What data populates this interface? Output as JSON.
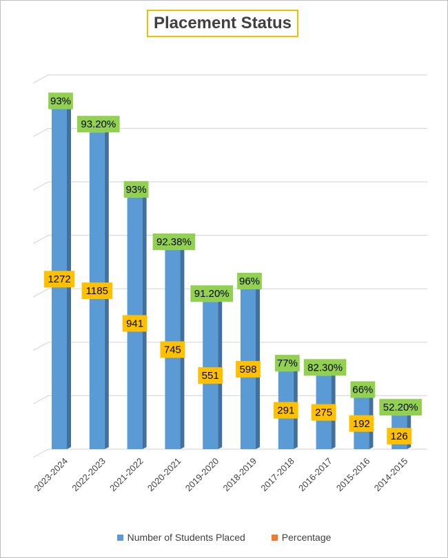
{
  "chart_data": {
    "type": "bar",
    "title": "Placement Status",
    "categories": [
      "2023-2024",
      "2022-2023",
      "2021-2022",
      "2020-2021",
      "2019-2020",
      "2018-2019",
      "2017-2018",
      "2016-2017",
      "2015-2016",
      "2014-2015"
    ],
    "series": [
      {
        "name": "Number of Students Placed",
        "values": [
          1272,
          1185,
          941,
          745,
          551,
          598,
          291,
          275,
          192,
          126
        ],
        "color": "#5b9bd5"
      },
      {
        "name": "Percentage",
        "values": [
          93,
          93.2,
          93,
          92.38,
          91.2,
          96,
          77,
          82.3,
          66,
          52.2
        ],
        "color": "#ed7d31"
      }
    ],
    "data_labels": {
      "count": [
        "1272",
        "1185",
        "941",
        "745",
        "551",
        "598",
        "291",
        "275",
        "192",
        "126"
      ],
      "percentage": [
        "93%",
        "93.20%",
        "93%",
        "92.38%",
        "91.20%",
        "96%",
        "77%",
        "82.30%",
        "66%",
        "52.20%"
      ]
    },
    "label_colors": {
      "count_fill": "#ffc000",
      "percentage_fill": "#92d050"
    },
    "grid": true,
    "legend_position": "bottom",
    "ylim": [
      0,
      1400
    ]
  }
}
